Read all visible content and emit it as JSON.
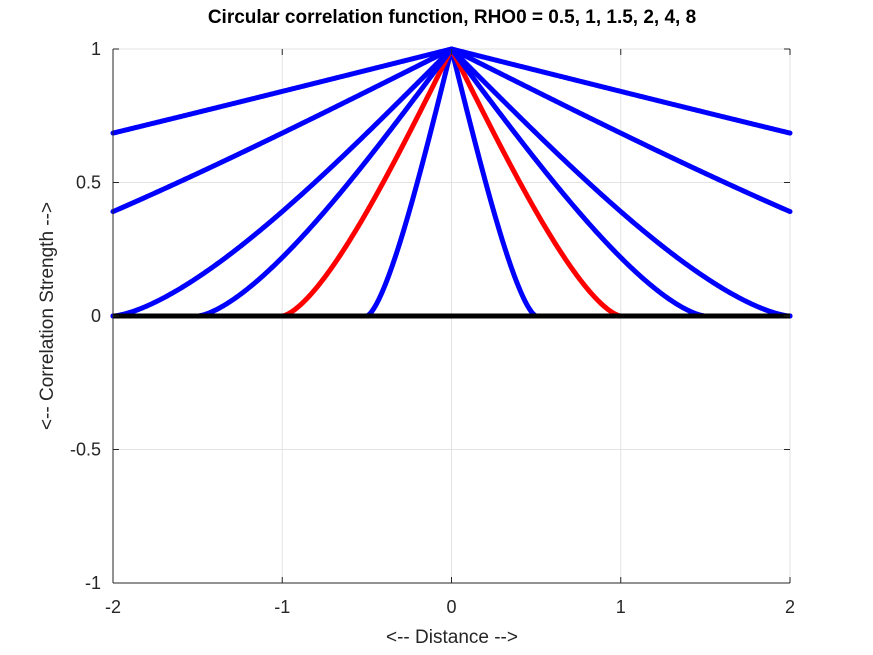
{
  "chart_data": {
    "type": "line",
    "title": "Circular correlation function, RHO0 = 0.5, 1, 1.5, 2, 4, 8",
    "xlabel": "<-- Distance -->",
    "ylabel": "<-- Correlation Strength -->",
    "xlim": [
      -2,
      2
    ],
    "ylim": [
      -1,
      1
    ],
    "xticks": [
      -2,
      -1,
      0,
      1,
      2
    ],
    "yticks": [
      -1,
      -0.5,
      0,
      0.5,
      1
    ],
    "xtick_labels": [
      "-2",
      "-1",
      "0",
      "1",
      "2"
    ],
    "ytick_labels": [
      "-1",
      "-0.5",
      "0",
      "0.5",
      "1"
    ],
    "grid": true,
    "function": "circular",
    "series": [
      {
        "rho0": 0.5,
        "color": "#0000ff"
      },
      {
        "rho0": 1,
        "color": "#ff0000"
      },
      {
        "rho0": 1.5,
        "color": "#0000ff"
      },
      {
        "rho0": 2,
        "color": "#0000ff"
      },
      {
        "rho0": 4,
        "color": "#0000ff"
      },
      {
        "rho0": 8,
        "color": "#0000ff"
      }
    ],
    "baseline": {
      "y": 0,
      "color": "#000000"
    }
  }
}
